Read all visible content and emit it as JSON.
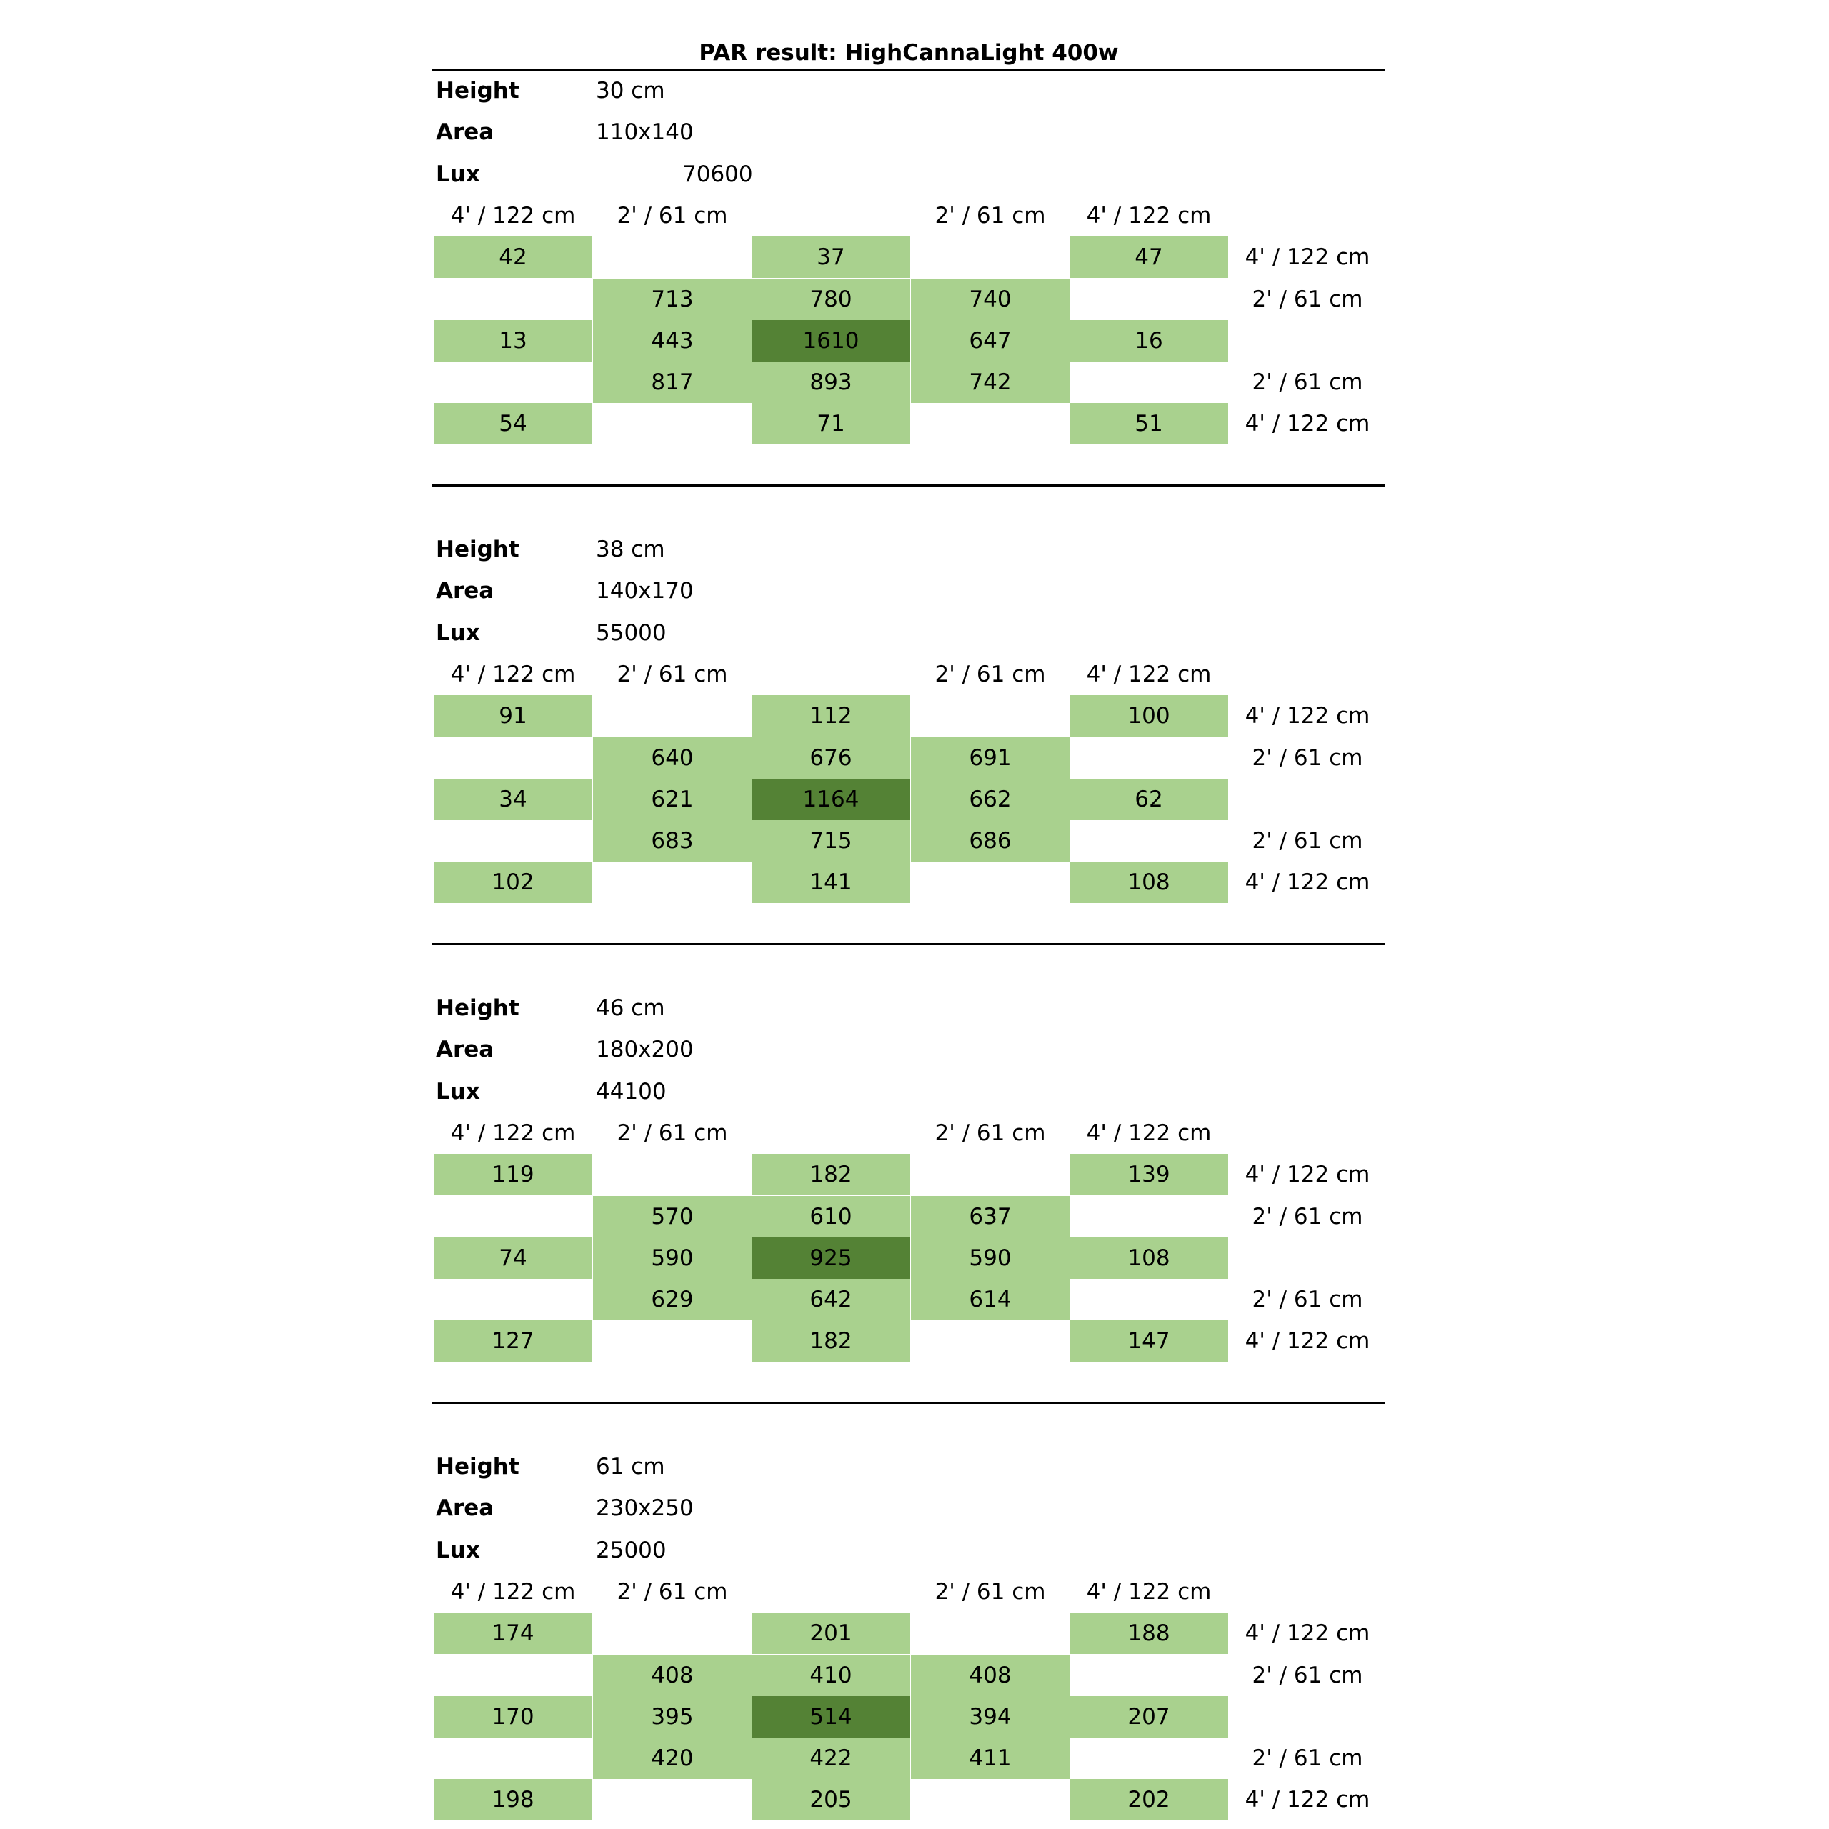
{
  "title": "PAR result: HighCannaLight 400w",
  "labels": {
    "height": "Height",
    "area": "Area",
    "lux": "Lux",
    "col_4ft": "4' / 122 cm",
    "col_2ft": "2' / 61 cm",
    "row_4ft": "4' / 122 cm",
    "row_2ft": "2' / 61 cm"
  },
  "colors": {
    "cell": "#a9d18e",
    "center_cell": "#548235",
    "rule": "#000000"
  },
  "sections": [
    {
      "height": "30 cm",
      "area": "110x140",
      "lux": "70600",
      "grid": [
        [
          "42",
          "",
          "37",
          "",
          "47"
        ],
        [
          "",
          "713",
          "780",
          "740",
          ""
        ],
        [
          "13",
          "443",
          "1610",
          "647",
          "16"
        ],
        [
          "",
          "817",
          "893",
          "742",
          ""
        ],
        [
          "54",
          "",
          "71",
          "",
          "51"
        ]
      ]
    },
    {
      "height": "38 cm",
      "area": "140x170",
      "lux": "55000",
      "grid": [
        [
          "91",
          "",
          "112",
          "",
          "100"
        ],
        [
          "",
          "640",
          "676",
          "691",
          ""
        ],
        [
          "34",
          "621",
          "1164",
          "662",
          "62"
        ],
        [
          "",
          "683",
          "715",
          "686",
          ""
        ],
        [
          "102",
          "",
          "141",
          "",
          "108"
        ]
      ]
    },
    {
      "height": "46 cm",
      "area": "180x200",
      "lux": "44100",
      "grid": [
        [
          "119",
          "",
          "182",
          "",
          "139"
        ],
        [
          "",
          "570",
          "610",
          "637",
          ""
        ],
        [
          "74",
          "590",
          "925",
          "590",
          "108"
        ],
        [
          "",
          "629",
          "642",
          "614",
          ""
        ],
        [
          "127",
          "",
          "182",
          "",
          "147"
        ]
      ]
    },
    {
      "height": "61 cm",
      "area": "230x250",
      "lux": "25000",
      "grid": [
        [
          "174",
          "",
          "201",
          "",
          "188"
        ],
        [
          "",
          "408",
          "410",
          "408",
          ""
        ],
        [
          "170",
          "395",
          "514",
          "394",
          "207"
        ],
        [
          "",
          "420",
          "422",
          "411",
          ""
        ],
        [
          "198",
          "",
          "205",
          "",
          "202"
        ]
      ]
    }
  ]
}
